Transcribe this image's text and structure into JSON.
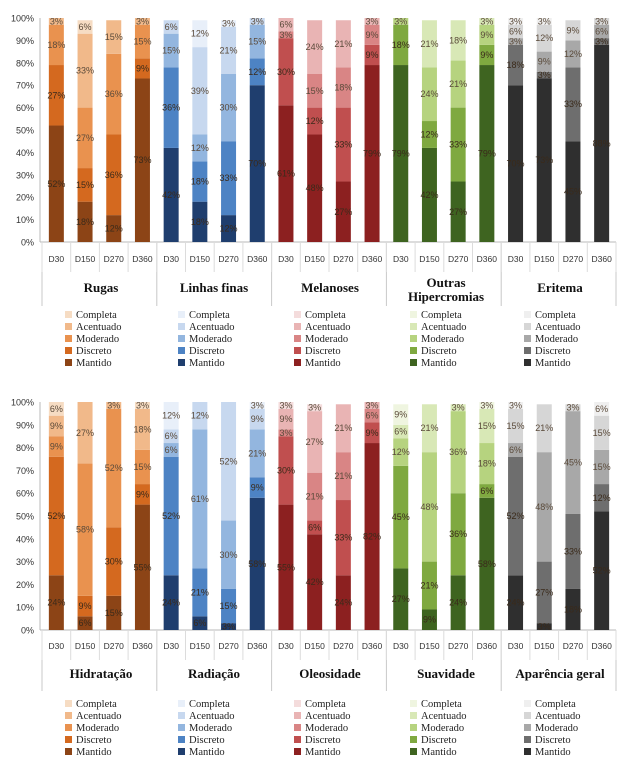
{
  "chart_data": [
    {
      "type": "bar",
      "stacked": true,
      "y_tick_labels": [
        "0%",
        "10%",
        "20%",
        "30%",
        "40%",
        "50%",
        "60%",
        "70%",
        "80%",
        "90%",
        "100%"
      ],
      "ylim": [
        0,
        100
      ],
      "legend": [
        "Completa",
        "Acentuado",
        "Moderado",
        "Discreto",
        "Mantido"
      ],
      "groups": [
        {
          "name": "Rugas",
          "palette": [
            "#f6dcc3",
            "#f1b98a",
            "#e9924f",
            "#d4691f",
            "#8c4416"
          ],
          "bars": [
            {
              "x": "D30",
              "values": [
                52,
                27,
                18,
                3,
                0
              ],
              "labels": [
                "52%",
                "27%",
                "18%",
                "3%",
                ""
              ]
            },
            {
              "x": "D150",
              "values": [
                18,
                15,
                27,
                33,
                6
              ],
              "labels": [
                "18%",
                "15%",
                "27%",
                "33%",
                "6%"
              ]
            },
            {
              "x": "D270",
              "values": [
                12,
                36,
                36,
                15,
                0
              ],
              "labels": [
                "12%",
                "36%",
                "36%",
                "15%",
                ""
              ]
            },
            {
              "x": "D360",
              "values": [
                73,
                9,
                15,
                3,
                0
              ],
              "labels": [
                "73%",
                "9%",
                "15%",
                "3%",
                ""
              ]
            }
          ]
        },
        {
          "name": "Linhas finas",
          "palette": [
            "#e8eff9",
            "#c7d8ef",
            "#93b6df",
            "#4d83c4",
            "#1f3e6e"
          ],
          "bars": [
            {
              "x": "D30",
              "values": [
                42,
                36,
                15,
                6,
                0
              ],
              "labels": [
                "42%",
                "36%",
                "15%",
                "6%",
                ""
              ]
            },
            {
              "x": "D150",
              "values": [
                18,
                18,
                12,
                39,
                12
              ],
              "labels": [
                "18%",
                "18%",
                "12%",
                "39%",
                "12%"
              ]
            },
            {
              "x": "D270",
              "values": [
                12,
                33,
                30,
                21,
                3
              ],
              "labels": [
                "12%",
                "33%",
                "30%",
                "21%",
                "3%"
              ]
            },
            {
              "x": "D360",
              "values": [
                70,
                12,
                15,
                3,
                0
              ],
              "labels": [
                "70%",
                "12%",
                "15%",
                "3%",
                ""
              ]
            }
          ]
        },
        {
          "name": "Melanoses",
          "palette": [
            "#f4dcdc",
            "#e9b4b4",
            "#d98585",
            "#c04f4f",
            "#8c2020"
          ],
          "bars": [
            {
              "x": "D30",
              "values": [
                61,
                30,
                3,
                6,
                0
              ],
              "labels": [
                "61%",
                "30%",
                "3%",
                "6%",
                ""
              ]
            },
            {
              "x": "D150",
              "values": [
                48,
                12,
                15,
                24,
                0
              ],
              "labels": [
                "48%",
                "12%",
                "15%",
                "24%",
                ""
              ]
            },
            {
              "x": "D270",
              "values": [
                27,
                33,
                18,
                21,
                0
              ],
              "labels": [
                "27%",
                "33%",
                "18%",
                "21%",
                ""
              ]
            },
            {
              "x": "D360",
              "values": [
                79,
                9,
                9,
                3,
                0
              ],
              "labels": [
                "79%",
                "9%",
                "9%",
                "3%",
                ""
              ]
            }
          ]
        },
        {
          "name": "Outras Hipercromias",
          "palette": [
            "#eff5e0",
            "#d8e8b6",
            "#b6d37f",
            "#7fa940",
            "#3e6420"
          ],
          "bars": [
            {
              "x": "D30",
              "values": [
                79,
                18,
                3,
                0,
                0
              ],
              "labels": [
                "79%",
                "18%",
                "3%",
                "",
                ""
              ]
            },
            {
              "x": "D150",
              "values": [
                42,
                12,
                24,
                21,
                0
              ],
              "labels": [
                "42%",
                "12%",
                "24%",
                "21%",
                ""
              ]
            },
            {
              "x": "D270",
              "values": [
                27,
                33,
                21,
                18,
                0
              ],
              "labels": [
                "27%",
                "33%",
                "21%",
                "18%",
                ""
              ]
            },
            {
              "x": "D360",
              "values": [
                79,
                9,
                9,
                3,
                0
              ],
              "labels": [
                "79%",
                "9%",
                "9%",
                "3%",
                ""
              ]
            }
          ]
        },
        {
          "name": "Eritema",
          "palette": [
            "#efefef",
            "#d6d6d6",
            "#a8a8a8",
            "#6e6e6e",
            "#2f2f2f"
          ],
          "bars": [
            {
              "x": "D30",
              "values": [
                70,
                18,
                3,
                6,
                3
              ],
              "labels": [
                "70%",
                "18%",
                "3%",
                "6%",
                "3%"
              ]
            },
            {
              "x": "D150",
              "values": [
                73,
                3,
                9,
                12,
                3
              ],
              "labels": [
                "73%",
                "3%",
                "9%",
                "12%",
                "3%"
              ]
            },
            {
              "x": "D270",
              "values": [
                45,
                33,
                12,
                9,
                0
              ],
              "labels": [
                "45%",
                "33%",
                "12%",
                "9%",
                ""
              ]
            },
            {
              "x": "D360",
              "values": [
                88,
                3,
                6,
                3,
                0
              ],
              "labels": [
                "88%",
                "3%",
                "6%",
                "3%",
                ""
              ]
            }
          ]
        }
      ]
    },
    {
      "type": "bar",
      "stacked": true,
      "y_tick_labels": [
        "0%",
        "10%",
        "20%",
        "30%",
        "40%",
        "50%",
        "60%",
        "70%",
        "80%",
        "90%",
        "100%"
      ],
      "ylim": [
        0,
        100
      ],
      "legend": [
        "Completa",
        "Acentuado",
        "Moderado",
        "Discreto",
        "Mantido"
      ],
      "groups": [
        {
          "name": "Hidratação",
          "palette": [
            "#f6dcc3",
            "#f1b98a",
            "#e9924f",
            "#d4691f",
            "#8c4416"
          ],
          "bars": [
            {
              "x": "D30",
              "values": [
                24,
                52,
                9,
                9,
                6
              ],
              "labels": [
                "24%",
                "52%",
                "9%",
                "9%",
                "6%"
              ]
            },
            {
              "x": "D150",
              "values": [
                6,
                9,
                58,
                27,
                0
              ],
              "labels": [
                "6%",
                "9%",
                "58%",
                "27%",
                ""
              ]
            },
            {
              "x": "D270",
              "values": [
                15,
                30,
                52,
                3,
                0
              ],
              "labels": [
                "15%",
                "30%",
                "52%",
                "3%",
                ""
              ]
            },
            {
              "x": "D360",
              "values": [
                55,
                9,
                15,
                18,
                3
              ],
              "labels": [
                "55%",
                "9%",
                "15%",
                "18%",
                "3%"
              ]
            }
          ]
        },
        {
          "name": "Radiação",
          "palette": [
            "#e8eff9",
            "#c7d8ef",
            "#93b6df",
            "#4d83c4",
            "#1f3e6e"
          ],
          "bars": [
            {
              "x": "D30",
              "values": [
                24,
                52,
                6,
                6,
                12
              ],
              "labels": [
                "24%",
                "52%",
                "6%",
                "6%",
                "12%"
              ]
            },
            {
              "x": "D150",
              "values": [
                6,
                21,
                61,
                12,
                0
              ],
              "labels": [
                "6%",
                "21%",
                "61%",
                "12%",
                ""
              ]
            },
            {
              "x": "D270",
              "values": [
                3,
                15,
                30,
                52,
                0
              ],
              "labels": [
                "3%",
                "15%",
                "30%",
                "52%",
                ""
              ]
            },
            {
              "x": "D360",
              "values": [
                58,
                9,
                21,
                9,
                3
              ],
              "labels": [
                "58%",
                "9%",
                "21%",
                "9%",
                "3%"
              ]
            }
          ]
        },
        {
          "name": "Oleosidade",
          "palette": [
            "#f4dcdc",
            "#e9b4b4",
            "#d98585",
            "#c04f4f",
            "#8c2020"
          ],
          "bars": [
            {
              "x": "D30",
              "values": [
                55,
                30,
                3,
                9,
                3
              ],
              "labels": [
                "55%",
                "30%",
                "3%",
                "9%",
                "3%"
              ]
            },
            {
              "x": "D150",
              "values": [
                42,
                6,
                21,
                27,
                3
              ],
              "labels": [
                "42%",
                "6%",
                "21%",
                "27%",
                "3%"
              ]
            },
            {
              "x": "D270",
              "values": [
                24,
                33,
                21,
                21,
                0
              ],
              "labels": [
                "24%",
                "33%",
                "21%",
                "21%",
                ""
              ]
            },
            {
              "x": "D360",
              "values": [
                82,
                9,
                6,
                3,
                0
              ],
              "labels": [
                "82%",
                "9%",
                "6%",
                "3%",
                ""
              ]
            }
          ]
        },
        {
          "name": "Suavidade",
          "palette": [
            "#eff5e0",
            "#d8e8b6",
            "#b6d37f",
            "#7fa940",
            "#3e6420"
          ],
          "bars": [
            {
              "x": "D30",
              "values": [
                27,
                45,
                12,
                6,
                9
              ],
              "labels": [
                "27%",
                "45%",
                "12%",
                "6%",
                "9%"
              ]
            },
            {
              "x": "D150",
              "values": [
                9,
                21,
                48,
                21,
                0
              ],
              "labels": [
                "9%",
                "21%",
                "48%",
                "21%",
                ""
              ]
            },
            {
              "x": "D270",
              "values": [
                24,
                36,
                36,
                3,
                0
              ],
              "labels": [
                "24%",
                "36%",
                "36%",
                "3%",
                ""
              ]
            },
            {
              "x": "D360",
              "values": [
                58,
                6,
                18,
                15,
                3
              ],
              "labels": [
                "58%",
                "6%",
                "18%",
                "15%",
                "3%"
              ]
            }
          ]
        },
        {
          "name": "Aparência geral",
          "palette": [
            "#efefef",
            "#d6d6d6",
            "#a8a8a8",
            "#6e6e6e",
            "#2f2f2f"
          ],
          "bars": [
            {
              "x": "D30",
              "values": [
                24,
                52,
                6,
                15,
                3
              ],
              "labels": [
                "24%",
                "52%",
                "6%",
                "15%",
                "3%"
              ]
            },
            {
              "x": "D150",
              "values": [
                3,
                27,
                48,
                21,
                0
              ],
              "labels": [
                "3%",
                "27%",
                "48%",
                "21%",
                ""
              ]
            },
            {
              "x": "D270",
              "values": [
                18,
                33,
                45,
                3,
                0
              ],
              "labels": [
                "18%",
                "33%",
                "45%",
                "3%",
                ""
              ]
            },
            {
              "x": "D360",
              "values": [
                52,
                12,
                15,
                15,
                6
              ],
              "labels": [
                "52%",
                "12%",
                "15%",
                "15%",
                "6%"
              ]
            }
          ]
        }
      ]
    }
  ]
}
